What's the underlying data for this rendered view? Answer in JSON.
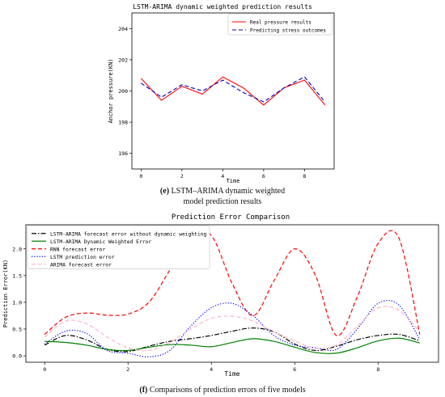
{
  "caption_top": {
    "letter": "(e)",
    "line1": "LSTM–ARIMA dynamic weighted",
    "line2": "model prediction results"
  },
  "caption_bottom": {
    "letter": "(f)",
    "text": "Comparisons of prediction errors of five models"
  },
  "chart_data": [
    {
      "type": "line",
      "title": "LSTM-ARIMA dynamic weighted prediction results",
      "xlabel": "Time",
      "ylabel": "Anchor pressure(KN)",
      "xlim": [
        -0.45,
        9.45
      ],
      "ylim": [
        195,
        205
      ],
      "xticks": [
        0,
        2,
        4,
        6,
        8
      ],
      "yticks": [
        196,
        198,
        200,
        202,
        204
      ],
      "grid": false,
      "legend": "top-right",
      "x": [
        0,
        1,
        2,
        3,
        4,
        5,
        6,
        7,
        8,
        9
      ],
      "series": [
        {
          "name": "Real pressure results",
          "color": "#ff0000",
          "dash": "solid",
          "values": [
            200.8,
            199.4,
            200.3,
            199.8,
            200.9,
            200.2,
            199.1,
            200.2,
            200.7,
            199.1
          ]
        },
        {
          "name": "Predicting stress outcomes",
          "color": "#0000cc",
          "dash": "dashed",
          "values": [
            200.5,
            199.6,
            200.4,
            200.0,
            200.7,
            199.9,
            199.3,
            200.2,
            200.9,
            199.3
          ]
        }
      ]
    },
    {
      "type": "line",
      "title": "Prediction Error Comparison",
      "xlabel": "Time",
      "ylabel": "Prediction Error(KN)",
      "xlim": [
        -0.45,
        9.45
      ],
      "ylim": [
        -0.12,
        2.45
      ],
      "xticks": [
        0,
        2,
        4,
        6,
        8
      ],
      "yticks": [
        0.0,
        0.5,
        1.0,
        1.5,
        2.0
      ],
      "grid": false,
      "legend": "top-left",
      "series": [
        {
          "name": "LSTM-ARIMA forecast error without dynamic weighting",
          "color": "#000000",
          "dash": "dashdot",
          "x": [
            0,
            0.5,
            1,
            1.5,
            2,
            2.5,
            3,
            3.5,
            4,
            4.5,
            5,
            5.5,
            6,
            6.5,
            7,
            7.5,
            8,
            8.5,
            9
          ],
          "values": [
            0.2,
            0.38,
            0.3,
            0.12,
            0.08,
            0.18,
            0.27,
            0.32,
            0.38,
            0.46,
            0.52,
            0.45,
            0.22,
            0.1,
            0.18,
            0.3,
            0.38,
            0.4,
            0.28
          ]
        },
        {
          "name": "LSTM-ARIMA Dynamic Weighted Error",
          "color": "#008000",
          "dash": "solid",
          "x": [
            0,
            0.5,
            1,
            1.5,
            2,
            2.5,
            3,
            3.5,
            4,
            4.5,
            5,
            5.5,
            6,
            6.5,
            7,
            7.5,
            8,
            8.5,
            9
          ],
          "values": [
            0.27,
            0.25,
            0.2,
            0.12,
            0.1,
            0.16,
            0.21,
            0.2,
            0.17,
            0.25,
            0.32,
            0.27,
            0.16,
            0.06,
            0.05,
            0.15,
            0.28,
            0.33,
            0.24
          ]
        },
        {
          "name": "RNN forecast error",
          "color": "#ff0000",
          "dash": "dashed",
          "x": [
            0,
            0.5,
            1,
            1.5,
            2,
            2.5,
            3,
            3.5,
            4,
            4.5,
            5,
            5.5,
            6,
            6.5,
            7,
            7.5,
            8,
            8.5,
            9
          ],
          "values": [
            0.4,
            0.72,
            0.8,
            0.76,
            0.78,
            1.0,
            1.6,
            2.25,
            2.25,
            1.35,
            0.75,
            1.4,
            2.0,
            1.5,
            0.38,
            1.1,
            2.1,
            2.2,
            0.4
          ]
        },
        {
          "name": "LSTM prediction error",
          "color": "#0000ff",
          "dash": "dotted",
          "x": [
            0,
            0.5,
            1,
            1.5,
            2,
            2.5,
            3,
            3.5,
            4,
            4.5,
            5,
            5.5,
            6,
            6.5,
            7,
            7.5,
            8,
            8.5,
            9
          ],
          "values": [
            0.22,
            0.46,
            0.42,
            0.1,
            0.05,
            -0.02,
            0.1,
            0.55,
            0.9,
            0.98,
            0.75,
            0.38,
            0.2,
            0.15,
            0.12,
            0.5,
            0.98,
            0.95,
            0.3
          ]
        },
        {
          "name": "ARIMA forecast error",
          "color": "#ffb6c1",
          "dash": "dashed",
          "x": [
            0,
            0.5,
            1,
            1.5,
            2,
            2.5,
            3,
            3.5,
            4,
            4.5,
            5,
            5.5,
            6,
            6.5,
            7,
            7.5,
            8,
            8.5,
            9
          ],
          "values": [
            0.35,
            0.65,
            0.6,
            0.35,
            0.15,
            0.1,
            0.25,
            0.5,
            0.7,
            0.74,
            0.65,
            0.45,
            0.28,
            0.14,
            0.2,
            0.55,
            0.9,
            0.85,
            0.45
          ]
        }
      ]
    }
  ]
}
